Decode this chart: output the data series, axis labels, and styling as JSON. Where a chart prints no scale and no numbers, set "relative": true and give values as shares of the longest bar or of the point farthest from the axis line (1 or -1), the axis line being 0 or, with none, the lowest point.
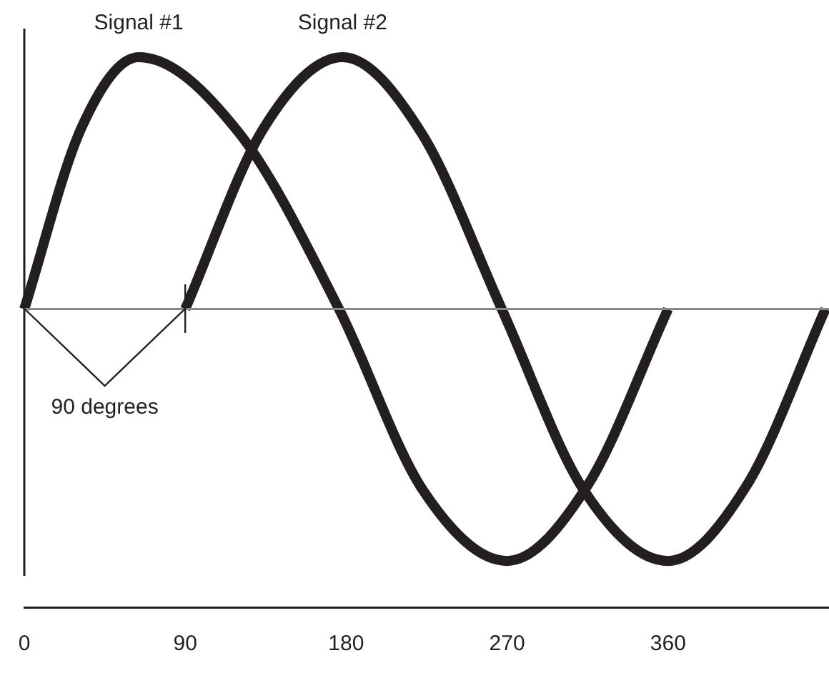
{
  "chart_data": {
    "type": "line",
    "relative": true,
    "xlim": [
      0,
      450
    ],
    "xticks": [
      0,
      90,
      180,
      270,
      360
    ],
    "grid": false,
    "legend": false,
    "marker": "none",
    "line_style": "solid",
    "tick_labels": "x",
    "annotations": [
      "90 degrees"
    ],
    "series": [
      {
        "name": "Signal #1",
        "color": "#231f20",
        "x": [
          0,
          32,
          64,
          120,
          176,
          223,
          270,
          315,
          360
        ],
        "values": [
          0,
          0.72,
          1,
          0.7,
          0,
          -0.72,
          -1,
          -0.7,
          0
        ]
      },
      {
        "name": "Signal #2",
        "color": "#231f20",
        "x": [
          90,
          134,
          178,
          222,
          267,
          313,
          360,
          404,
          448
        ],
        "values": [
          0,
          0.72,
          1,
          0.7,
          0,
          -0.72,
          -1,
          -0.7,
          0
        ]
      }
    ]
  }
}
